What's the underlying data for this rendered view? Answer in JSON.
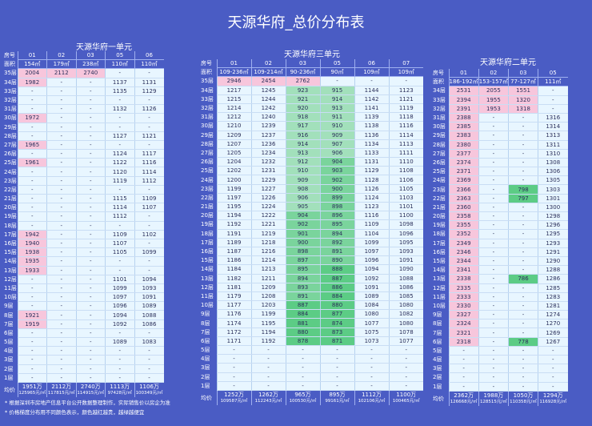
{
  "title": "天源华府_总价分布表",
  "panels": [
    {
      "title": "天源华府一单元",
      "units": [
        "01",
        "02",
        "03",
        "05",
        "06"
      ],
      "areas": [
        "154㎡",
        "179㎡",
        "238㎡",
        "110㎡",
        "110㎡"
      ],
      "rows": [
        {
          "f": "35层",
          "v": [
            "2004",
            "2112",
            "2740",
            "-",
            "-"
          ]
        },
        {
          "f": "34层",
          "v": [
            "1982",
            "-",
            "-",
            "1137",
            "1131"
          ]
        },
        {
          "f": "33层",
          "v": [
            "-",
            "-",
            "-",
            "1135",
            "1129"
          ]
        },
        {
          "f": "32层",
          "v": [
            "-",
            "-",
            "-",
            "-",
            "-"
          ]
        },
        {
          "f": "31层",
          "v": [
            "-",
            "-",
            "-",
            "1132",
            "1126"
          ]
        },
        {
          "f": "30层",
          "v": [
            "1972",
            "-",
            "-",
            "-",
            "-"
          ]
        },
        {
          "f": "29层",
          "v": [
            "-",
            "-",
            "-",
            "-",
            "-"
          ]
        },
        {
          "f": "28层",
          "v": [
            "-",
            "-",
            "-",
            "1127",
            "1121"
          ]
        },
        {
          "f": "27层",
          "v": [
            "1965",
            "-",
            "-",
            "-",
            "-"
          ]
        },
        {
          "f": "26层",
          "v": [
            "-",
            "-",
            "-",
            "1124",
            "1117"
          ]
        },
        {
          "f": "25层",
          "v": [
            "1961",
            "-",
            "-",
            "1122",
            "1116"
          ]
        },
        {
          "f": "24层",
          "v": [
            "-",
            "-",
            "-",
            "1120",
            "1114"
          ]
        },
        {
          "f": "23层",
          "v": [
            "-",
            "-",
            "-",
            "1119",
            "1112"
          ]
        },
        {
          "f": "22层",
          "v": [
            "-",
            "-",
            "-",
            "-",
            "-"
          ]
        },
        {
          "f": "21层",
          "v": [
            "-",
            "-",
            "-",
            "1115",
            "1109"
          ]
        },
        {
          "f": "20层",
          "v": [
            "-",
            "-",
            "-",
            "1114",
            "1107"
          ]
        },
        {
          "f": "19层",
          "v": [
            "-",
            "-",
            "-",
            "1112",
            "-"
          ]
        },
        {
          "f": "18层",
          "v": [
            "-",
            "-",
            "-",
            "-",
            "-"
          ]
        },
        {
          "f": "17层",
          "v": [
            "1942",
            "-",
            "-",
            "1109",
            "1102"
          ]
        },
        {
          "f": "16层",
          "v": [
            "1940",
            "-",
            "-",
            "1107",
            "-"
          ]
        },
        {
          "f": "15层",
          "v": [
            "1938",
            "-",
            "-",
            "1105",
            "1099"
          ]
        },
        {
          "f": "14层",
          "v": [
            "1935",
            "-",
            "-",
            "-",
            "-"
          ]
        },
        {
          "f": "13层",
          "v": [
            "1933",
            "-",
            "-",
            "-",
            "-"
          ]
        },
        {
          "f": "12层",
          "v": [
            "-",
            "-",
            "-",
            "1101",
            "1094"
          ]
        },
        {
          "f": "11层",
          "v": [
            "-",
            "-",
            "-",
            "1099",
            "1093"
          ]
        },
        {
          "f": "10层",
          "v": [
            "-",
            "-",
            "-",
            "1097",
            "1091"
          ]
        },
        {
          "f": "9层",
          "v": [
            "-",
            "-",
            "-",
            "1096",
            "1089"
          ]
        },
        {
          "f": "8层",
          "v": [
            "1921",
            "-",
            "-",
            "1094",
            "1088"
          ]
        },
        {
          "f": "7层",
          "v": [
            "1919",
            "-",
            "-",
            "1092",
            "1086"
          ]
        },
        {
          "f": "6层",
          "v": [
            "-",
            "-",
            "-",
            "-",
            "-"
          ]
        },
        {
          "f": "5层",
          "v": [
            "-",
            "-",
            "-",
            "1089",
            "1083"
          ]
        },
        {
          "f": "4层",
          "v": [
            "-",
            "-",
            "-",
            "-",
            "-"
          ]
        },
        {
          "f": "3层",
          "v": [
            "-",
            "-",
            "-",
            "-",
            "-"
          ]
        },
        {
          "f": "2层",
          "v": [
            "-",
            "-",
            "-",
            "-",
            "-"
          ]
        },
        {
          "f": "1层",
          "v": [
            "-",
            "-",
            "-",
            "-",
            "-"
          ]
        }
      ],
      "avg_price": [
        "1951万",
        "2112万",
        "2740万",
        "1113万",
        "1106万"
      ],
      "avg_unit": [
        "125965元/㎡",
        "117815元/㎡",
        "114915元/㎡",
        "97428元/㎡",
        "100349元/㎡"
      ]
    },
    {
      "title": "天源华府三单元",
      "units": [
        "01",
        "02",
        "03",
        "05",
        "06",
        "07"
      ],
      "areas": [
        "109-236㎡",
        "109-214㎡",
        "90-236㎡",
        "90㎡",
        "109㎡",
        "109㎡"
      ],
      "rows": [
        {
          "f": "35层",
          "v": [
            "2946",
            "2454",
            "2762",
            "-",
            "-",
            "-"
          ]
        },
        {
          "f": "34层",
          "v": [
            "1217",
            "1245",
            "923",
            "915",
            "1144",
            "1123"
          ]
        },
        {
          "f": "33层",
          "v": [
            "1215",
            "1244",
            "921",
            "914",
            "1142",
            "1121"
          ]
        },
        {
          "f": "32层",
          "v": [
            "1214",
            "1242",
            "920",
            "913",
            "1141",
            "1119"
          ]
        },
        {
          "f": "31层",
          "v": [
            "1212",
            "1240",
            "918",
            "911",
            "1139",
            "1118"
          ]
        },
        {
          "f": "30层",
          "v": [
            "1210",
            "1239",
            "917",
            "910",
            "1138",
            "1116"
          ]
        },
        {
          "f": "29层",
          "v": [
            "1209",
            "1237",
            "916",
            "909",
            "1136",
            "1114"
          ]
        },
        {
          "f": "28层",
          "v": [
            "1207",
            "1236",
            "914",
            "907",
            "1134",
            "1113"
          ]
        },
        {
          "f": "27层",
          "v": [
            "1205",
            "1234",
            "913",
            "906",
            "1133",
            "1111"
          ]
        },
        {
          "f": "26层",
          "v": [
            "1204",
            "1232",
            "912",
            "904",
            "1131",
            "1110"
          ]
        },
        {
          "f": "25层",
          "v": [
            "1202",
            "1231",
            "910",
            "903",
            "1129",
            "1108"
          ]
        },
        {
          "f": "24层",
          "v": [
            "1200",
            "1229",
            "909",
            "902",
            "1128",
            "1106"
          ]
        },
        {
          "f": "23层",
          "v": [
            "1199",
            "1227",
            "908",
            "900",
            "1126",
            "1105"
          ]
        },
        {
          "f": "22层",
          "v": [
            "1197",
            "1226",
            "906",
            "899",
            "1124",
            "1103"
          ]
        },
        {
          "f": "21层",
          "v": [
            "1195",
            "1224",
            "905",
            "898",
            "1123",
            "1101"
          ]
        },
        {
          "f": "20层",
          "v": [
            "1194",
            "1222",
            "904",
            "896",
            "1116",
            "1100"
          ]
        },
        {
          "f": "19层",
          "v": [
            "1192",
            "1221",
            "902",
            "895",
            "1109",
            "1098"
          ]
        },
        {
          "f": "18层",
          "v": [
            "1191",
            "1219",
            "901",
            "894",
            "1104",
            "1096"
          ]
        },
        {
          "f": "17层",
          "v": [
            "1189",
            "1218",
            "900",
            "892",
            "1099",
            "1095"
          ]
        },
        {
          "f": "16层",
          "v": [
            "1187",
            "1216",
            "898",
            "891",
            "1097",
            "1093"
          ]
        },
        {
          "f": "15层",
          "v": [
            "1186",
            "1214",
            "897",
            "890",
            "1096",
            "1091"
          ]
        },
        {
          "f": "14层",
          "v": [
            "1184",
            "1213",
            "895",
            "888",
            "1094",
            "1090"
          ]
        },
        {
          "f": "13层",
          "v": [
            "1182",
            "1211",
            "894",
            "887",
            "1092",
            "1088"
          ]
        },
        {
          "f": "12层",
          "v": [
            "1181",
            "1209",
            "893",
            "886",
            "1091",
            "1086"
          ]
        },
        {
          "f": "11层",
          "v": [
            "1179",
            "1208",
            "891",
            "884",
            "1089",
            "1085"
          ]
        },
        {
          "f": "10层",
          "v": [
            "1177",
            "1203",
            "887",
            "880",
            "1084",
            "1080"
          ]
        },
        {
          "f": "9层",
          "v": [
            "1176",
            "1199",
            "884",
            "877",
            "1080",
            "1082"
          ]
        },
        {
          "f": "8层",
          "v": [
            "1174",
            "1195",
            "881",
            "874",
            "1077",
            "1080"
          ]
        },
        {
          "f": "7层",
          "v": [
            "1172",
            "1194",
            "880",
            "873",
            "1075",
            "1078"
          ]
        },
        {
          "f": "6层",
          "v": [
            "1171",
            "1192",
            "878",
            "871",
            "1073",
            "1077"
          ]
        },
        {
          "f": "5层",
          "v": [
            "-",
            "-",
            "-",
            "-",
            "-",
            "-"
          ]
        },
        {
          "f": "4层",
          "v": [
            "-",
            "-",
            "-",
            "-",
            "-",
            "-"
          ]
        },
        {
          "f": "3层",
          "v": [
            "-",
            "-",
            "-",
            "-",
            "-",
            "-"
          ]
        },
        {
          "f": "2层",
          "v": [
            "-",
            "-",
            "-",
            "-",
            "-",
            "-"
          ]
        },
        {
          "f": "1层",
          "v": [
            "-",
            "-",
            "-",
            "-",
            "-",
            "-"
          ]
        }
      ],
      "avg_price": [
        "1252万",
        "1262万",
        "965万",
        "895万",
        "1112万",
        "1100万"
      ],
      "avg_unit": [
        "109587元/㎡",
        "112243元/㎡",
        "100530元/㎡",
        "99161元/㎡",
        "102106元/㎡",
        "100465元/㎡"
      ]
    },
    {
      "title": "天源华府二单元",
      "units": [
        "01",
        "02",
        "03",
        "05"
      ],
      "areas": [
        "186-192㎡",
        "153-157㎡",
        "77-127㎡",
        "111㎡"
      ],
      "rows": [
        {
          "f": "34层",
          "v": [
            "2531",
            "2055",
            "1551",
            "-"
          ]
        },
        {
          "f": "33层",
          "v": [
            "2394",
            "1955",
            "1320",
            "-"
          ]
        },
        {
          "f": "32层",
          "v": [
            "2391",
            "1953",
            "1318",
            "-"
          ]
        },
        {
          "f": "31层",
          "v": [
            "2388",
            "-",
            "-",
            "1316"
          ]
        },
        {
          "f": "30层",
          "v": [
            "2385",
            "-",
            "-",
            "1314"
          ]
        },
        {
          "f": "29层",
          "v": [
            "2383",
            "-",
            "-",
            "1313"
          ]
        },
        {
          "f": "28层",
          "v": [
            "2380",
            "-",
            "-",
            "1311"
          ]
        },
        {
          "f": "27层",
          "v": [
            "2377",
            "-",
            "-",
            "1310"
          ]
        },
        {
          "f": "26层",
          "v": [
            "2374",
            "-",
            "-",
            "1308"
          ]
        },
        {
          "f": "25层",
          "v": [
            "2371",
            "-",
            "-",
            "1306"
          ]
        },
        {
          "f": "24层",
          "v": [
            "2369",
            "-",
            "-",
            "1305"
          ]
        },
        {
          "f": "23层",
          "v": [
            "2366",
            "-",
            "798",
            "1303"
          ]
        },
        {
          "f": "22层",
          "v": [
            "2363",
            "-",
            "797",
            "1301"
          ]
        },
        {
          "f": "21层",
          "v": [
            "2360",
            "-",
            "-",
            "1300"
          ]
        },
        {
          "f": "20层",
          "v": [
            "2358",
            "-",
            "-",
            "1298"
          ]
        },
        {
          "f": "19层",
          "v": [
            "2355",
            "-",
            "-",
            "1296"
          ]
        },
        {
          "f": "18层",
          "v": [
            "2352",
            "-",
            "-",
            "1295"
          ]
        },
        {
          "f": "17层",
          "v": [
            "2349",
            "-",
            "-",
            "1293"
          ]
        },
        {
          "f": "16层",
          "v": [
            "2346",
            "-",
            "-",
            "1291"
          ]
        },
        {
          "f": "15层",
          "v": [
            "2344",
            "-",
            "-",
            "1290"
          ]
        },
        {
          "f": "14层",
          "v": [
            "2341",
            "-",
            "-",
            "1288"
          ]
        },
        {
          "f": "13层",
          "v": [
            "2338",
            "-",
            "786",
            "1286"
          ]
        },
        {
          "f": "12层",
          "v": [
            "2335",
            "-",
            "-",
            "1285"
          ]
        },
        {
          "f": "11层",
          "v": [
            "2333",
            "-",
            "-",
            "1283"
          ]
        },
        {
          "f": "10层",
          "v": [
            "2330",
            "-",
            "-",
            "1281"
          ]
        },
        {
          "f": "9层",
          "v": [
            "2327",
            "-",
            "-",
            "1274"
          ]
        },
        {
          "f": "8层",
          "v": [
            "2324",
            "-",
            "-",
            "1270"
          ]
        },
        {
          "f": "7层",
          "v": [
            "2321",
            "-",
            "-",
            "1269"
          ]
        },
        {
          "f": "6层",
          "v": [
            "2318",
            "-",
            "778",
            "1267"
          ]
        },
        {
          "f": "5层",
          "v": [
            "-",
            "-",
            "-",
            "-"
          ]
        },
        {
          "f": "4层",
          "v": [
            "-",
            "-",
            "-",
            "-"
          ]
        },
        {
          "f": "3层",
          "v": [
            "-",
            "-",
            "-",
            "-"
          ]
        },
        {
          "f": "2层",
          "v": [
            "-",
            "-",
            "-",
            "-"
          ]
        },
        {
          "f": "1层",
          "v": [
            "-",
            "-",
            "-",
            "-"
          ]
        }
      ],
      "avg_price": [
        "2362万",
        "1988万",
        "1050万",
        "1294万"
      ],
      "avg_unit": [
        "126668元/㎡",
        "128515元/㎡",
        "110358元/㎡",
        "116928元/㎡"
      ]
    }
  ],
  "labels": {
    "room": "房号",
    "area": "面积",
    "avg": "均价"
  },
  "notes": [
    "* 根据深圳市房地产信息平台公开数据整理制作，实际销售价以房企为准",
    "* 价格梯度分布用不同颜色表示，颜色越红越贵，越绿越便宜"
  ],
  "colors": {
    "background": "#4a5cc4",
    "cell": "#e8f6ff",
    "expensive": "#f7c6dc",
    "cheap": "#5ccc85"
  }
}
